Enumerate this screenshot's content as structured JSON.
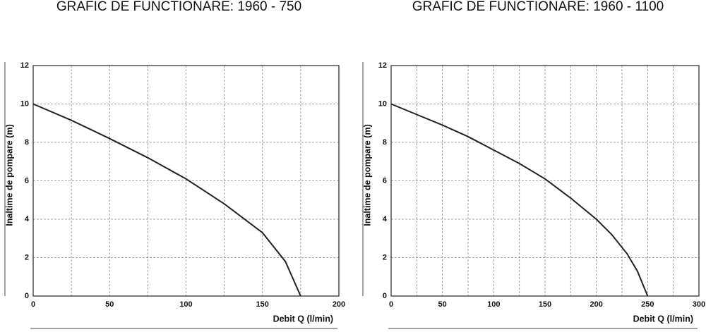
{
  "chart_data": [
    {
      "type": "line",
      "title": "GRAFIC DE FUNCTIONARE: 1960 - 750",
      "x_label": "Debit  Q (l/min)",
      "y_label": "Inaltime de pompare (m)",
      "x": [
        0,
        25,
        50,
        75,
        100,
        125,
        150,
        165,
        175
      ],
      "series": [
        {
          "color": "#222222",
          "values": [
            10,
            9.15,
            8.2,
            7.2,
            6.1,
            4.8,
            3.3,
            1.8,
            0
          ]
        }
      ],
      "xlim": [
        0,
        200
      ],
      "xticks": [
        0,
        50,
        100,
        150,
        200
      ],
      "xgrid": [
        25,
        50,
        75,
        100,
        125,
        150,
        175
      ],
      "ylim": [
        0,
        12
      ],
      "yticks": [
        0,
        2,
        4,
        6,
        8,
        10,
        12
      ],
      "grid": true
    },
    {
      "type": "line",
      "title": "GRAFIC DE FUNCTIONARE: 1960 - 1100",
      "x_label": "Debit  Q (l/min)",
      "y_label": "Inaltime de pompare (m)",
      "x": [
        0,
        25,
        50,
        75,
        100,
        125,
        150,
        175,
        200,
        215,
        230,
        240,
        250
      ],
      "series": [
        {
          "color": "#222222",
          "values": [
            10,
            9.45,
            8.9,
            8.3,
            7.6,
            6.9,
            6.1,
            5.1,
            4.0,
            3.2,
            2.2,
            1.3,
            0
          ]
        }
      ],
      "xlim": [
        0,
        300
      ],
      "xticks": [
        0,
        50,
        100,
        150,
        200,
        250,
        300
      ],
      "xgrid": [
        25,
        50,
        75,
        100,
        125,
        150,
        175,
        200,
        225,
        250,
        275
      ],
      "ylim": [
        0,
        12
      ],
      "yticks": [
        0,
        2,
        4,
        6,
        8,
        10,
        12
      ],
      "grid": true
    }
  ]
}
